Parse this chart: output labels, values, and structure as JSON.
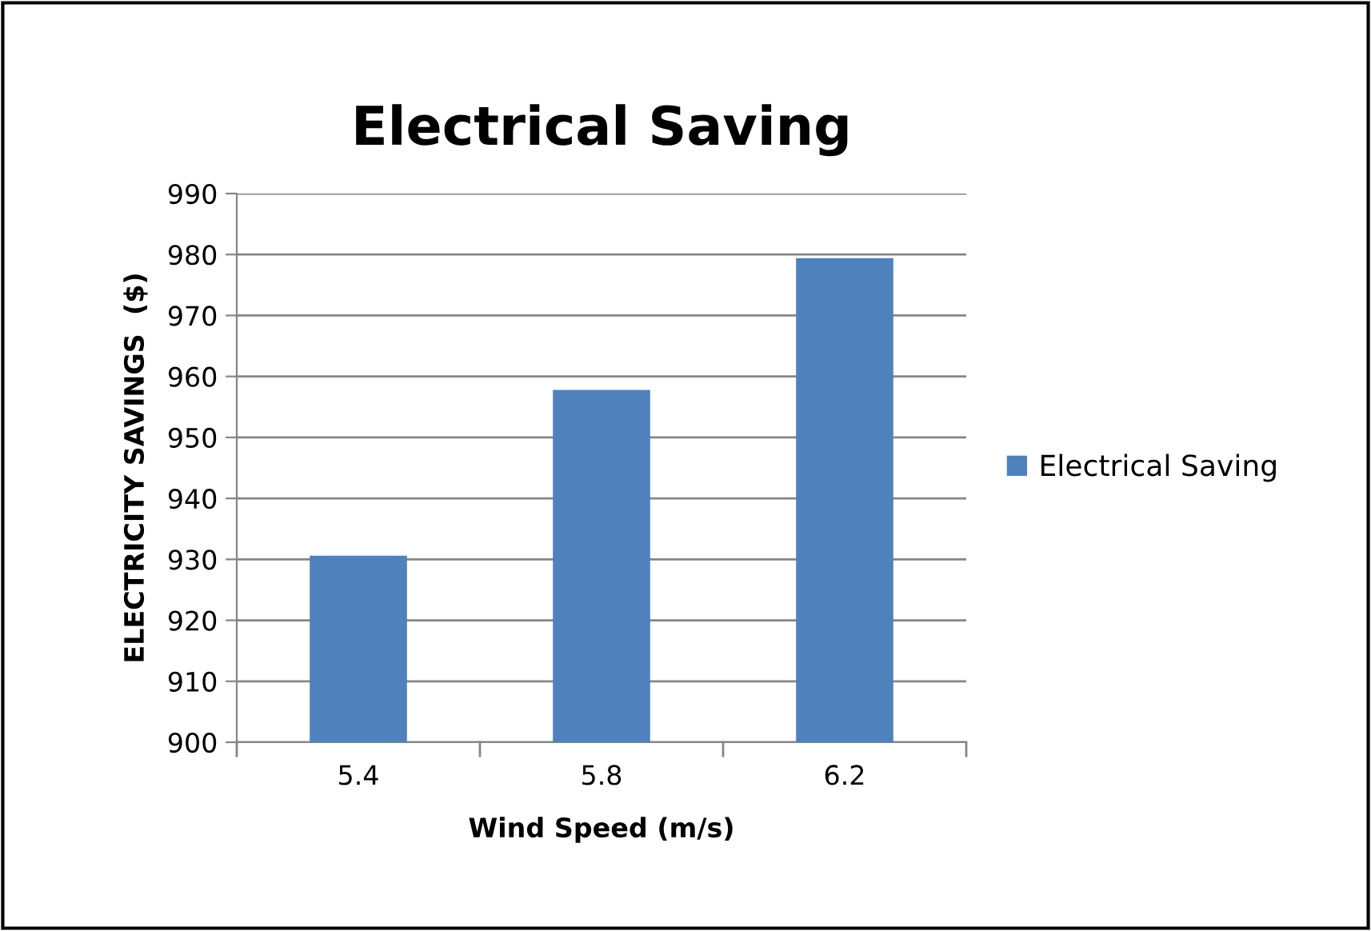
{
  "chart_data": {
    "type": "bar",
    "title": "Electrical Saving",
    "xlabel": "Wind Speed (m/s)",
    "ylabel": "ELECTRICITY SAVINGS  ($)",
    "categories": [
      "5.4",
      "5.8",
      "6.2"
    ],
    "series": [
      {
        "name": "Electrical Saving",
        "color": "#4f81bd",
        "values": [
          930.6,
          957.8,
          979.4
        ]
      }
    ],
    "ylim": [
      900,
      990
    ],
    "yticks": [
      900,
      910,
      920,
      930,
      940,
      950,
      960,
      970,
      980,
      990
    ],
    "grid": "y",
    "legend": "right"
  }
}
